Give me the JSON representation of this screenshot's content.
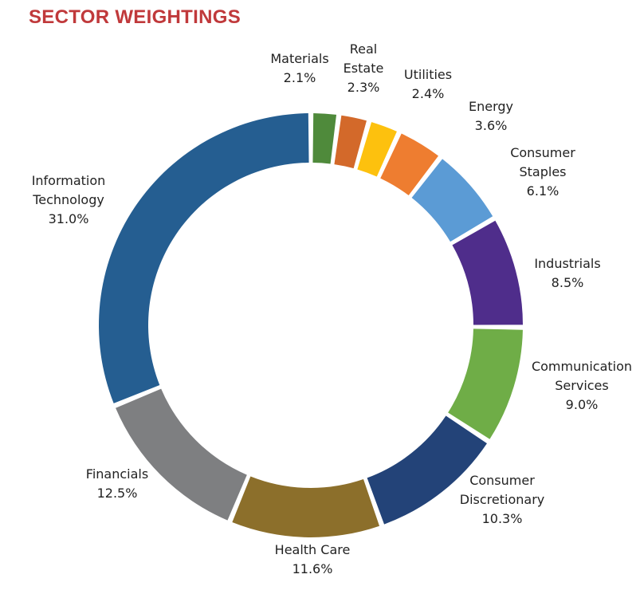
{
  "header": {
    "title": "SECTOR WEIGHTINGS"
  },
  "chart_data": {
    "type": "pie",
    "title": "SECTOR WEIGHTINGS",
    "donut": true,
    "categories": [
      "Materials",
      "Real Estate",
      "Utilities",
      "Energy",
      "Consumer Staples",
      "Industrials",
      "Communication Services",
      "Consumer Discretionary",
      "Health Care",
      "Financials",
      "Information Technology"
    ],
    "values": [
      2.1,
      2.3,
      2.4,
      3.6,
      6.1,
      8.5,
      9.0,
      10.3,
      11.6,
      12.5,
      31.0
    ],
    "value_labels": [
      "2.1%",
      "2.3%",
      "2.4%",
      "3.6%",
      "6.1%",
      "8.5%",
      "9.0%",
      "10.3%",
      "11.6%",
      "12.5%",
      "31.0%"
    ],
    "label_lines": [
      [
        "Materials"
      ],
      [
        "Real",
        "Estate"
      ],
      [
        "Utilities"
      ],
      [
        "Energy"
      ],
      [
        "Consumer",
        "Staples"
      ],
      [
        "Industrials"
      ],
      [
        "Communication",
        "Services"
      ],
      [
        "Consumer",
        "Discretionary"
      ],
      [
        "Health Care"
      ],
      [
        "Financials"
      ],
      [
        "Information",
        "Technology"
      ]
    ],
    "colors": [
      "#4f8a3b",
      "#d3692a",
      "#fdc10e",
      "#ee7d30",
      "#5b9bd5",
      "#4f2d8b",
      "#6fad47",
      "#234378",
      "#8c6f2b",
      "#7e7f81",
      "#255e91"
    ],
    "start": "12 o'clock, clockwise",
    "legend": "none"
  }
}
